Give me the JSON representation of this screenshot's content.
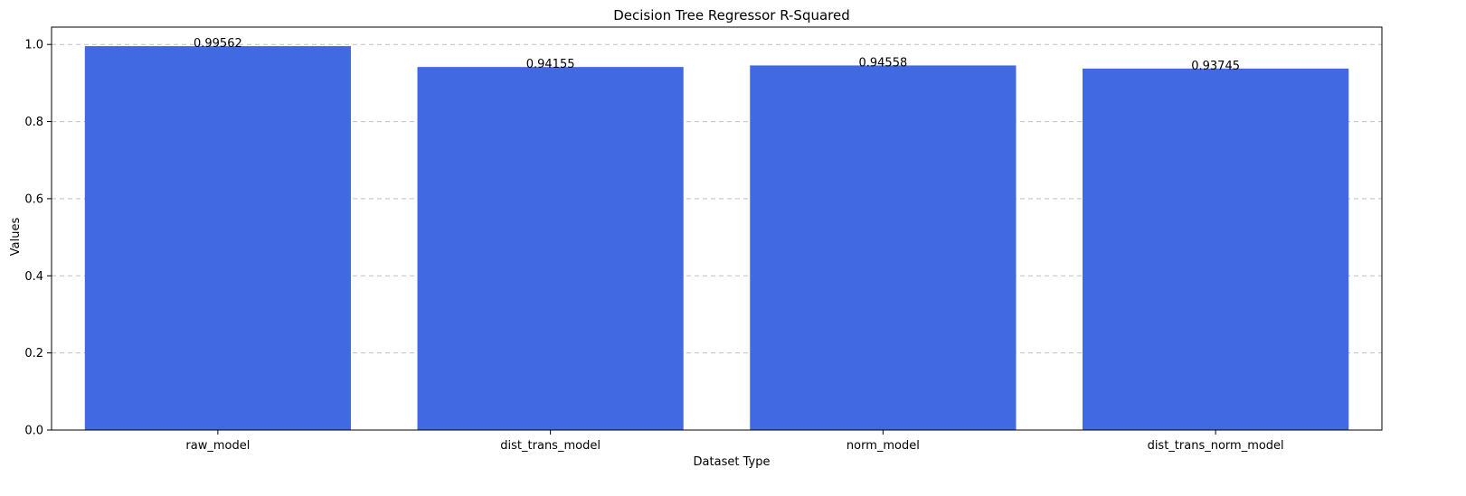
{
  "chart_data": {
    "type": "bar",
    "title": "Decision Tree Regressor R-Squared",
    "xlabel": "Dataset Type",
    "ylabel": "Values",
    "categories": [
      "raw_model",
      "dist_trans_model",
      "norm_model",
      "dist_trans_norm_model"
    ],
    "values": [
      0.99562,
      0.94155,
      0.94558,
      0.93745
    ],
    "value_labels": [
      "0.99562",
      "0.94155",
      "0.94558",
      "0.93745"
    ],
    "ylim": [
      0,
      1.045
    ],
    "yticks": [
      0.0,
      0.2,
      0.4,
      0.6,
      0.8,
      1.0
    ],
    "ytick_labels": [
      "0.0",
      "0.2",
      "0.4",
      "0.6",
      "0.8",
      "1.0"
    ],
    "grid": {
      "axis": "y",
      "style": "dashed",
      "color": "#c0c0c0"
    },
    "legend": "none",
    "bar_color": "#4169e1"
  }
}
